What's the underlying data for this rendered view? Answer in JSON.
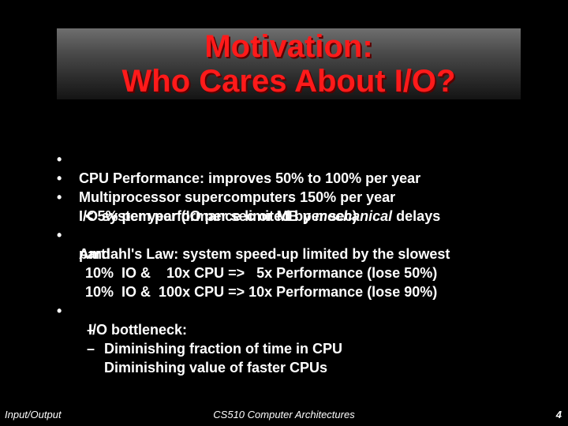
{
  "title": {
    "line1": "Motivation:",
    "line2": "Who Cares About I/O?"
  },
  "bullets": {
    "b1": "CPU Performance: improves 50% to 100% per year",
    "b2": "Multiprocessor supercomputers 150% per year",
    "b3_pre": "I/O system performance limited by ",
    "b3_em": "mechanical",
    "b3_post": " delays",
    "b3_cont": "< 5% per year (IO per sec or MB per sec)",
    "b4": "Amdahl's Law: system speed-up limited by the slowest",
    "b4_cont": "part!",
    "b4_ex1": "10%  IO &    10x CPU =>   5x Performance (lose 50%)",
    "b4_ex2": "10%  IO &  100x CPU => 10x Performance (lose 90%)",
    "b5": "I/O bottleneck:",
    "sub1": "Diminishing fraction of time in CPU",
    "sub2": "Diminishing value of faster CPUs"
  },
  "bullet_symbol": "•",
  "dash_symbol": "–",
  "footer": {
    "left": "Input/Output",
    "center": "CS510 Computer Architectures",
    "page": "4"
  }
}
